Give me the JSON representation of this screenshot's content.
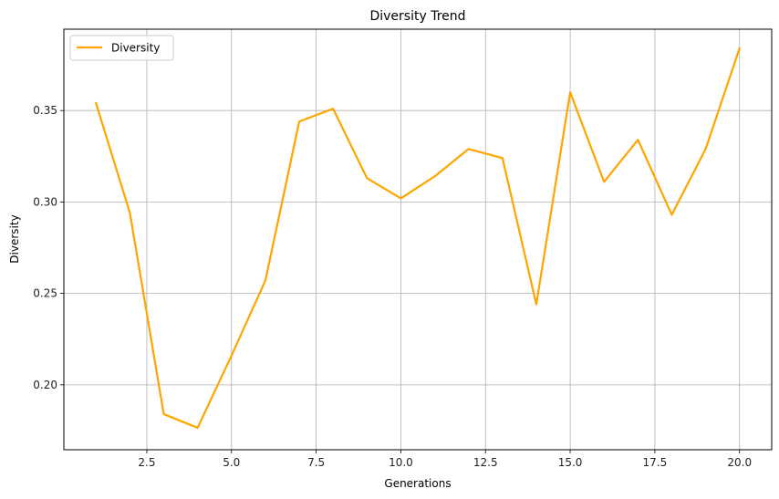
{
  "chart_data": {
    "type": "line",
    "title": "Diversity Trend",
    "xlabel": "Generations",
    "ylabel": "Diversity",
    "xlim": [
      0.05,
      20.95
    ],
    "ylim": [
      0.1645,
      0.3945
    ],
    "xticks": [
      "2.5",
      "5.0",
      "7.5",
      "10.0",
      "12.5",
      "15.0",
      "17.5",
      "20.0"
    ],
    "yticks": [
      "0.20",
      "0.25",
      "0.30",
      "0.35"
    ],
    "grid": true,
    "legend_position": "upper-left",
    "series": [
      {
        "name": "Diversity",
        "color": "#FFA500",
        "x": [
          1,
          2,
          3,
          4,
          5,
          6,
          7,
          8,
          9,
          10,
          11,
          12,
          13,
          14,
          15,
          16,
          17,
          18,
          19,
          20
        ],
        "y": [
          0.354,
          0.294,
          0.184,
          0.1765,
          0.216,
          0.257,
          0.344,
          0.351,
          0.313,
          0.302,
          0.314,
          0.329,
          0.324,
          0.244,
          0.36,
          0.311,
          0.334,
          0.293,
          0.329,
          0.384
        ]
      }
    ]
  }
}
